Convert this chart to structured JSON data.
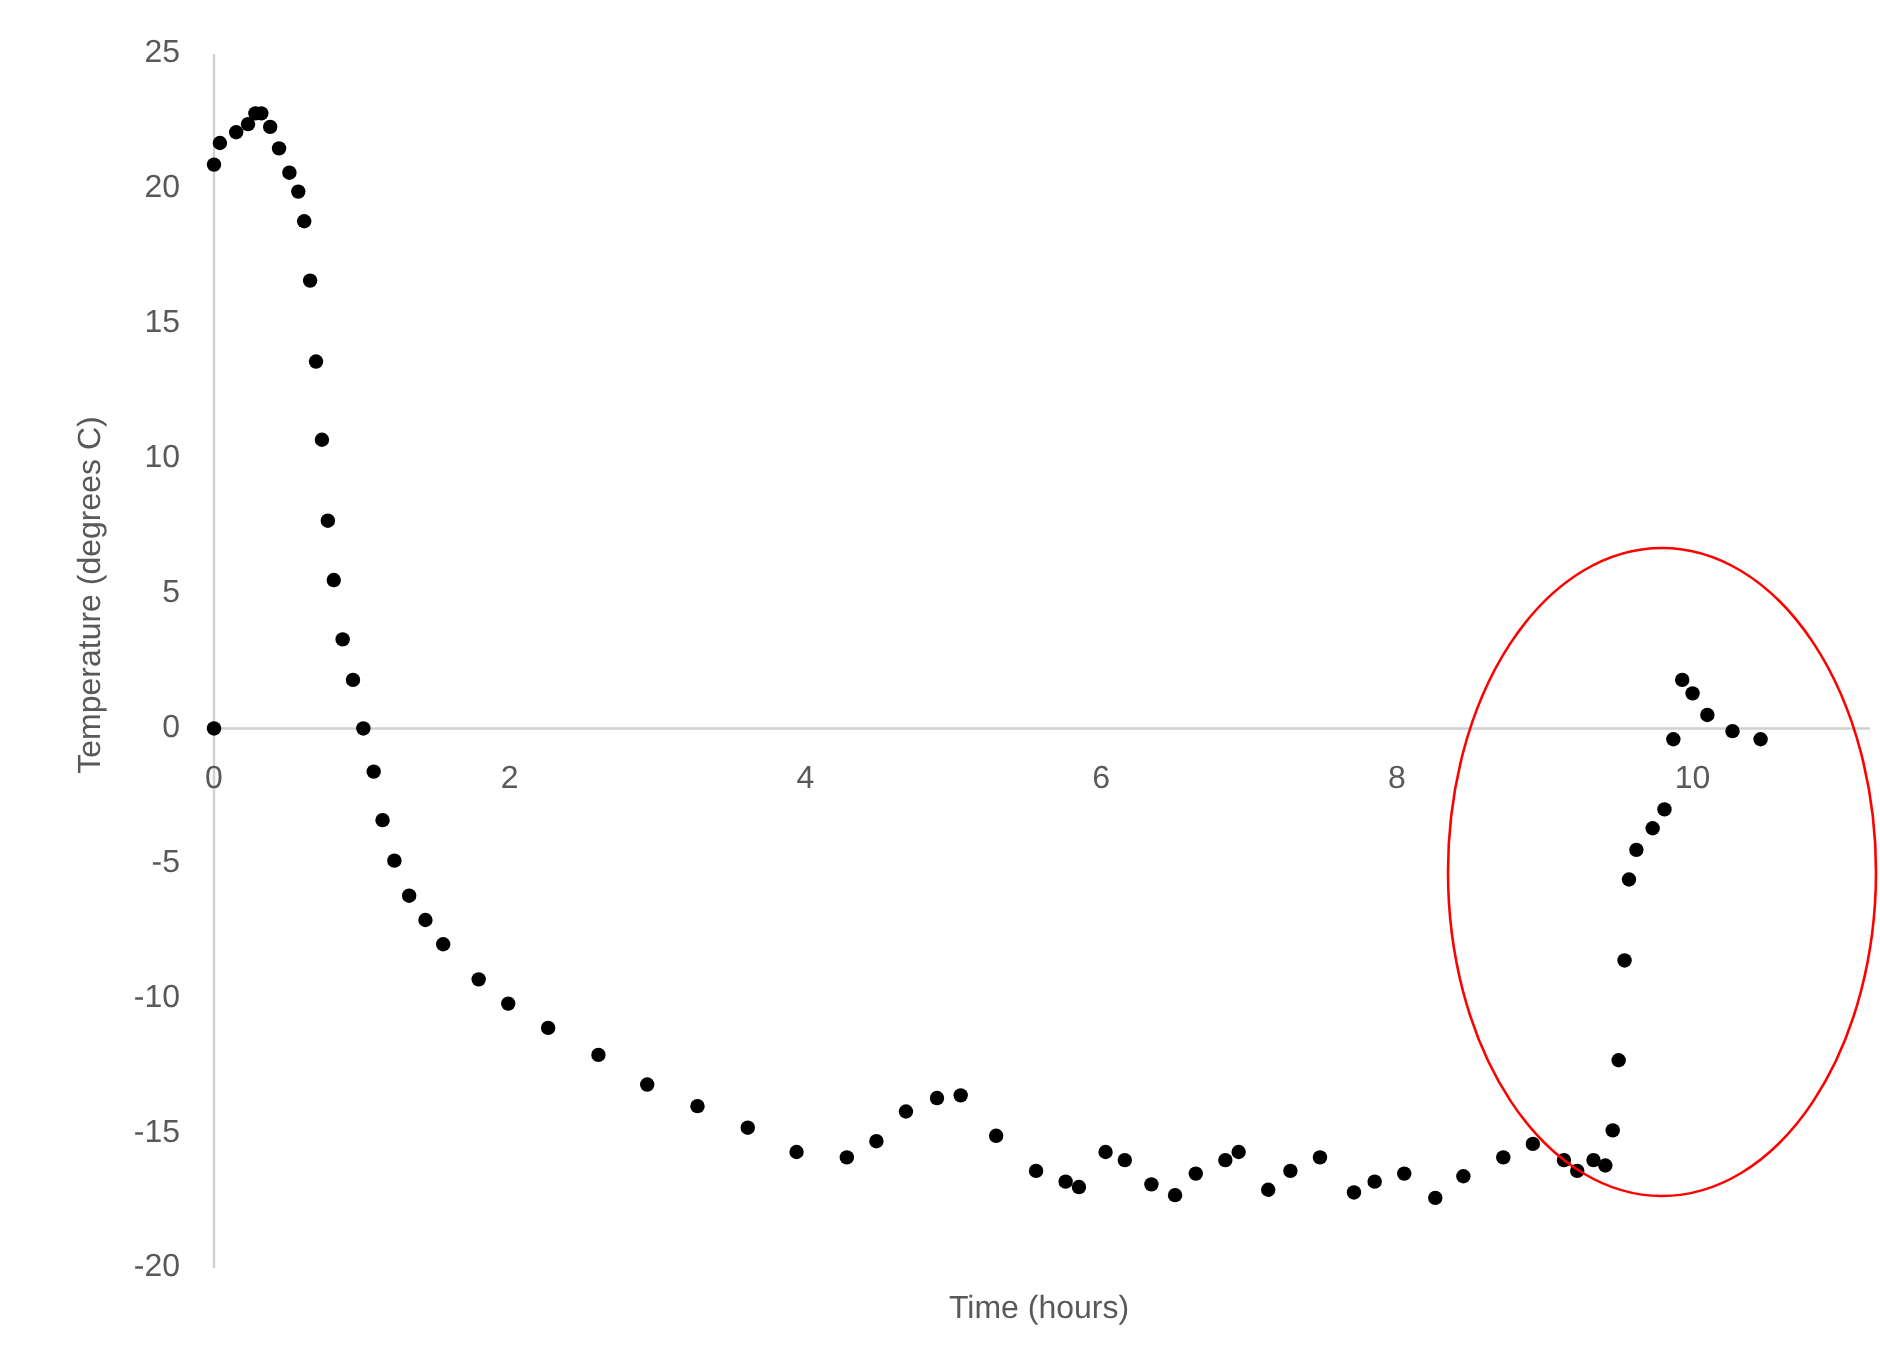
{
  "chart_data": {
    "type": "scatter",
    "xlabel": "Time (hours)",
    "ylabel": "Temperature  (degrees C)",
    "xlim": [
      0,
      11.2
    ],
    "ylim": [
      -20,
      25
    ],
    "xticks": [
      0,
      2,
      4,
      6,
      8,
      10
    ],
    "yticks": [
      -20,
      -15,
      -10,
      -5,
      0,
      5,
      10,
      15,
      20,
      25
    ],
    "grid": false,
    "marker": "circle",
    "series": [
      {
        "color": "#000000",
        "x": [
          0,
          0,
          0.04,
          0.15,
          0.23,
          0.28,
          0.32,
          0.38,
          0.44,
          0.51,
          0.57,
          0.61,
          0.65,
          0.69,
          0.73,
          0.77,
          0.81,
          0.87,
          0.94,
          1.01,
          1.08,
          1.14,
          1.22,
          1.32,
          1.43,
          1.55,
          1.79,
          1.99,
          2.26,
          2.6,
          2.93,
          3.27,
          3.61,
          3.94,
          4.28,
          4.48,
          4.68,
          4.89,
          5.05,
          5.29,
          5.56,
          5.76,
          5.85,
          6.03,
          6.16,
          6.34,
          6.5,
          6.64,
          6.84,
          6.93,
          7.13,
          7.28,
          7.48,
          7.71,
          7.85,
          8.05,
          8.26,
          8.45,
          8.72,
          8.92,
          9.13,
          9.22,
          9.33,
          9.41,
          9.46,
          9.5,
          9.54,
          9.57,
          9.62,
          9.73,
          9.81,
          9.87,
          9.93,
          10.0,
          10.1,
          10.27,
          10.46
        ],
        "values": [
          0,
          20.9,
          21.7,
          22.1,
          22.4,
          22.8,
          22.8,
          22.3,
          21.5,
          20.6,
          19.9,
          18.8,
          16.6,
          13.6,
          10.7,
          7.7,
          5.5,
          3.3,
          1.8,
          0,
          -1.6,
          -3.4,
          -4.9,
          -6.2,
          -7.1,
          -8.0,
          -9.3,
          -10.2,
          -11.1,
          -12.1,
          -13.2,
          -14.0,
          -14.8,
          -15.7,
          -15.9,
          -15.3,
          -14.2,
          -13.7,
          -13.6,
          -15.1,
          -16.4,
          -16.8,
          -17.0,
          -15.7,
          -16.0,
          -16.9,
          -17.3,
          -16.5,
          -16.0,
          -15.7,
          -17.1,
          -16.4,
          -15.9,
          -17.2,
          -16.8,
          -16.5,
          -17.4,
          -16.6,
          -15.9,
          -15.4,
          -16.0,
          -16.4,
          -16.0,
          -16.2,
          -14.9,
          -12.3,
          -8.6,
          -5.6,
          -4.5,
          -3.7,
          -3.0,
          -0.4,
          1.8,
          1.3,
          0.5,
          -0.1,
          -0.4
        ]
      }
    ]
  }
}
